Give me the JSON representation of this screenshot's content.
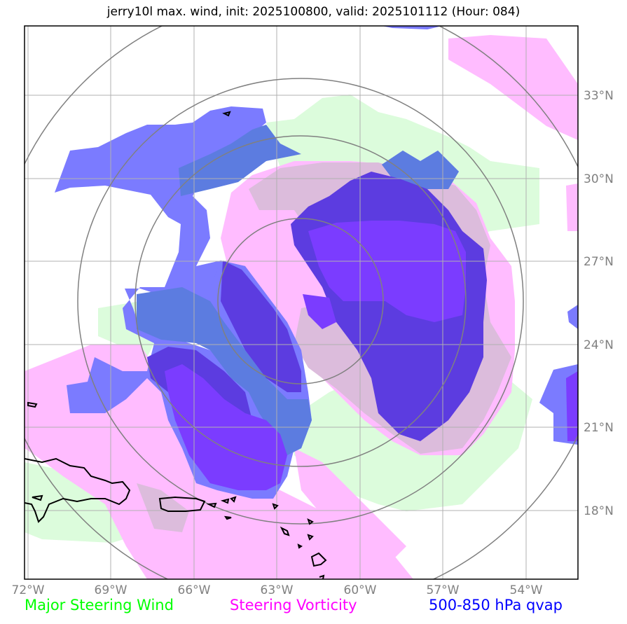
{
  "title": "jerry10l max. wind, init: 2025100800, valid: 2025101112 (Hour: 084)",
  "lon_labels": [
    "72°W",
    "69°W",
    "66°W",
    "63°W",
    "60°W",
    "57°W",
    "54°W"
  ],
  "lat_labels": [
    "33°N",
    "30°N",
    "27°N",
    "24°N",
    "21°N",
    "18°N"
  ],
  "legend": {
    "wind": "Major Steering Wind",
    "vorticity": "Steering Vorticity",
    "qvap": "500-850 hPa qvap"
  },
  "colors": {
    "wind_text": "#00ff00",
    "vorticity_text": "#ff00ff",
    "qvap_text": "#0000ff",
    "wind_fill": "#dcfcdc",
    "vorticity_fill": "#ffbcff",
    "overlap_fill": "#dcbcdc",
    "qvap_fill": "#7b7bff",
    "qvap_strong_fill": "#7b3cff",
    "qvap_wind_fill": "#5c7ce0",
    "qvap_vort_fill": "#5c3ce0",
    "range_rings": "#808080",
    "grid": "#b0b0b0",
    "coastline": "#000000"
  }
}
